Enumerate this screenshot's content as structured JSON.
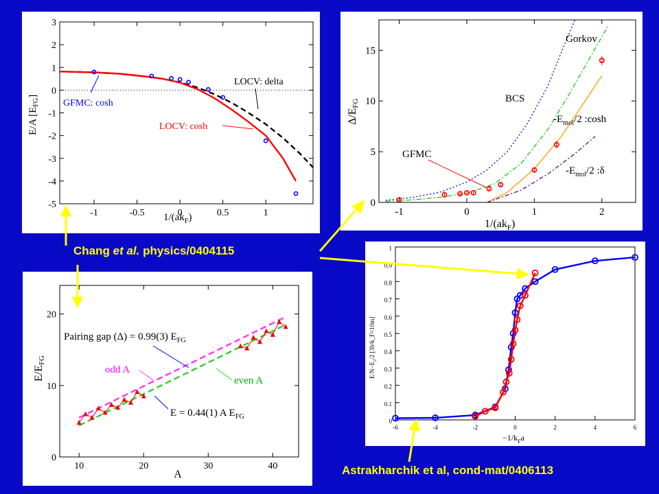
{
  "captions": {
    "chang_pre": "Chang ",
    "chang_em": "et al.",
    "chang_post": " physics/0404115",
    "astra": "Astrakharchik et al, cond-mat/0406113"
  },
  "colors": {
    "background": "#0909c8",
    "caption": "#ffff00",
    "red": "#ff0000",
    "blue": "#0000ff"
  },
  "chart_data": [
    {
      "id": "energy",
      "type": "line",
      "xlabel": "1/(ak",
      "xlabel_sub": "F",
      "xlabel_end": ")",
      "ylabel": "E/A [E",
      "ylabel_sub": "FG",
      "ylabel_end": "]",
      "xlim": [
        -1.4,
        1.55
      ],
      "ylim": [
        -5,
        3
      ],
      "xticks": [
        -1,
        -0.5,
        0,
        0.5,
        1
      ],
      "xtick_labels": [
        "-1",
        "-0.5",
        "0",
        "0.5",
        "1"
      ],
      "yticks": [
        -5,
        -4,
        -3,
        -2,
        -1,
        0,
        1,
        2,
        3
      ],
      "series": [
        {
          "name": "LOCV: delta",
          "style": "dashed-black",
          "x": [
            -1.4,
            -1,
            -0.7,
            -0.4,
            -0.2,
            0,
            0.2,
            0.4,
            0.6,
            0.8,
            1.0,
            1.2,
            1.4,
            1.55
          ],
          "y": [
            0.82,
            0.78,
            0.72,
            0.6,
            0.5,
            0.34,
            0.12,
            -0.18,
            -0.55,
            -1.0,
            -1.5,
            -2.1,
            -2.8,
            -3.4
          ]
        },
        {
          "name": "LOCV: cosh",
          "style": "solid-red",
          "x": [
            -1.4,
            -1,
            -0.7,
            -0.4,
            -0.2,
            0,
            0.2,
            0.4,
            0.6,
            0.8,
            1.0,
            1.2,
            1.35
          ],
          "y": [
            0.82,
            0.78,
            0.72,
            0.6,
            0.5,
            0.33,
            0.05,
            -0.35,
            -0.85,
            -1.4,
            -2.0,
            -3.0,
            -4.0
          ]
        },
        {
          "name": "GFMC: cosh",
          "style": "blue-circles",
          "x": [
            -1,
            -0.33,
            -0.1,
            0,
            0.1,
            0.33,
            0.5,
            1.0,
            1.35
          ],
          "y": [
            0.8,
            0.62,
            0.52,
            0.47,
            0.35,
            0.03,
            -0.32,
            -2.23,
            -4.55
          ]
        }
      ],
      "reference_line": {
        "y": 0,
        "style": "dotted"
      },
      "annotations": [
        {
          "text": "LOCV: delta",
          "color": "#000000"
        },
        {
          "text": "GFMC: cosh",
          "color": "#0000ff"
        },
        {
          "text": "LOCV: cosh",
          "color": "#ff0000"
        }
      ]
    },
    {
      "id": "gap",
      "type": "line",
      "xlabel": "1/(ak",
      "xlabel_sub": "F",
      "xlabel_end": ")",
      "ylabel": "Δ/E",
      "ylabel_sub": "FG",
      "xlim": [
        -1.3,
        2.5
      ],
      "ylim": [
        0,
        18
      ],
      "xticks": [
        -1,
        0,
        1,
        2
      ],
      "xtick_labels": [
        "-1",
        "0",
        "1",
        "2"
      ],
      "yticks": [
        0,
        5,
        10,
        15
      ],
      "series": [
        {
          "name": "BCS",
          "style": "dotted-blue",
          "x": [
            -1.2,
            -0.8,
            -0.4,
            0,
            0.3,
            0.6,
            0.9,
            1.2,
            1.4,
            1.6
          ],
          "y": [
            0.2,
            0.5,
            1.0,
            2.0,
            3.2,
            5.0,
            7.8,
            11.5,
            14.8,
            18
          ]
        },
        {
          "name": "Gorkov",
          "style": "dashdot-green",
          "x": [
            -1.2,
            -0.8,
            -0.4,
            0,
            0.4,
            0.8,
            1.2,
            1.5,
            1.8,
            2.1
          ],
          "y": [
            0.1,
            0.25,
            0.5,
            0.9,
            1.8,
            3.8,
            7.2,
            10.5,
            14.0,
            17.5
          ]
        },
        {
          "name": "-E_mol/2 :cosh",
          "style": "solid-orange",
          "x": [
            0.3,
            0.6,
            1.0,
            1.4,
            1.7,
            2.0
          ],
          "y": [
            0,
            1.0,
            3.3,
            6.5,
            9.5,
            12.5
          ]
        },
        {
          "name": "-E_mol/2 :δ",
          "style": "dashdot-purple",
          "x": [
            0.3,
            0.8,
            1.2,
            1.6,
            1.9
          ],
          "y": [
            0,
            1.2,
            2.8,
            4.8,
            6.5
          ]
        },
        {
          "name": "GFMC",
          "style": "red-circles-err",
          "x": [
            -1,
            -0.33,
            -0.1,
            0,
            0.1,
            0.33,
            0.5,
            1.0,
            1.33,
            2.0
          ],
          "y": [
            0.25,
            0.75,
            0.85,
            0.95,
            0.95,
            1.35,
            1.75,
            3.2,
            5.7,
            14.0
          ],
          "err": [
            0.1,
            0.15,
            0.15,
            0.15,
            0.15,
            0.2,
            0.2,
            0.25,
            0.35,
            0.45
          ]
        }
      ],
      "annotations": [
        {
          "text": "Gorkov"
        },
        {
          "text": "BCS"
        },
        {
          "text": "-E",
          "sub": "mol",
          "end": "/2 :cosh"
        },
        {
          "text": "-E",
          "sub": "mol",
          "end": "/2 :δ"
        },
        {
          "text": "GFMC"
        }
      ]
    },
    {
      "id": "pairing",
      "type": "scatter",
      "xlabel": "A",
      "ylabel": "E/E",
      "ylabel_sub": "FG",
      "xlim": [
        7,
        44
      ],
      "ylim": [
        0,
        24
      ],
      "xticks": [
        10,
        20,
        30,
        40
      ],
      "yticks": [
        0,
        10,
        20
      ],
      "series": [
        {
          "name": "odd A",
          "style": "magenta-dashed",
          "x": [
            10,
            42
          ],
          "y": [
            5.5,
            19.6
          ]
        },
        {
          "name": "even A",
          "style": "green-dashed",
          "x": [
            10,
            42
          ],
          "y": [
            4.4,
            18.5
          ]
        },
        {
          "name": "GFMC",
          "style": "red-triangles",
          "x": [
            10,
            11,
            12,
            13,
            14,
            15,
            16,
            17,
            18,
            19,
            20,
            35,
            36,
            37,
            38,
            39,
            40,
            41,
            42
          ],
          "y": [
            4.8,
            6.0,
            5.5,
            6.8,
            6.2,
            7.3,
            6.9,
            8.0,
            7.6,
            9.1,
            8.5,
            15.5,
            15.2,
            16.7,
            16.1,
            17.6,
            17.1,
            18.9,
            18.2
          ]
        }
      ],
      "annotations": [
        {
          "text": "Pairing gap (Δ) = 0.99(3) E",
          "sub": "FG"
        },
        {
          "text": "odd A",
          "color": "#ff00ff"
        },
        {
          "text": "even A",
          "color": "#00aa00"
        },
        {
          "text": "E = 0.44(1) A E",
          "sub": "FG"
        }
      ]
    },
    {
      "id": "crossover",
      "type": "line",
      "xlabel": "−1/k",
      "xlabel_sub": "F",
      "xlabel_end": "a",
      "ylabel": "E/N−E",
      "ylabel_sub": "2",
      "ylabel_end": "/2 [3ħ²k_F²/10m]",
      "xlim": [
        -6,
        6
      ],
      "ylim": [
        0,
        1
      ],
      "xticks": [
        -6,
        -4,
        -2,
        0,
        2,
        4,
        6
      ],
      "xtick_labels": [
        "-6",
        "-4",
        "-2",
        "0",
        "2",
        "4",
        "6"
      ],
      "yticks": [
        0,
        0.1,
        0.2,
        0.3,
        0.4,
        0.5,
        0.6,
        0.7,
        0.8,
        0.9,
        1
      ],
      "ytick_labels": [
        "0",
        "0.1",
        "0.2",
        "0.3",
        "0.4",
        "0.5",
        "0.6",
        "0.7",
        "0.8",
        "0.9",
        "1"
      ],
      "series": [
        {
          "name": "blue",
          "style": "blue-line-circles",
          "x": [
            -6,
            -4,
            -2,
            -1,
            -0.5,
            -0.33,
            -0.2,
            -0.1,
            0,
            0.1,
            0.25,
            0.5,
            1,
            2,
            4,
            6
          ],
          "y": [
            0.01,
            0.012,
            0.028,
            0.075,
            0.18,
            0.29,
            0.42,
            0.5,
            0.62,
            0.7,
            0.72,
            0.76,
            0.8,
            0.87,
            0.92,
            0.94
          ]
        },
        {
          "name": "red",
          "style": "red-line-circles",
          "x": [
            -2,
            -1.5,
            -1,
            -0.6,
            -0.45,
            -0.3,
            -0.2,
            -0.1,
            0,
            0.1,
            0.25,
            0.5,
            1
          ],
          "y": [
            0.02,
            0.05,
            0.07,
            0.16,
            0.22,
            0.27,
            0.35,
            0.44,
            0.52,
            0.58,
            0.66,
            0.72,
            0.85
          ]
        }
      ]
    }
  ]
}
